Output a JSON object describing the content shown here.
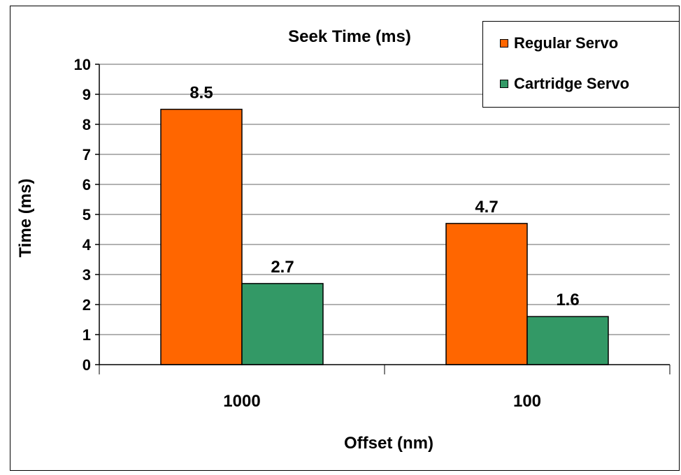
{
  "chart_data": {
    "type": "bar",
    "title": "Seek Time (ms)",
    "xlabel": "Offset (nm)",
    "ylabel": "Time (ms)",
    "categories": [
      "1000",
      "100"
    ],
    "series": [
      {
        "name": "Regular Servo",
        "values": [
          8.5,
          4.7
        ],
        "color": "#ff6600"
      },
      {
        "name": "Cartridge Servo",
        "values": [
          2.7,
          1.6
        ],
        "color": "#339966"
      }
    ],
    "ylim": [
      0,
      10
    ],
    "yticks": [
      "0",
      "1",
      "2",
      "3",
      "4",
      "5",
      "6",
      "7",
      "8",
      "9",
      "10"
    ],
    "data_labels": [
      [
        "8.5",
        "4.7"
      ],
      [
        "2.7",
        "1.6"
      ]
    ],
    "grid": true,
    "legend_position": "top-right"
  }
}
